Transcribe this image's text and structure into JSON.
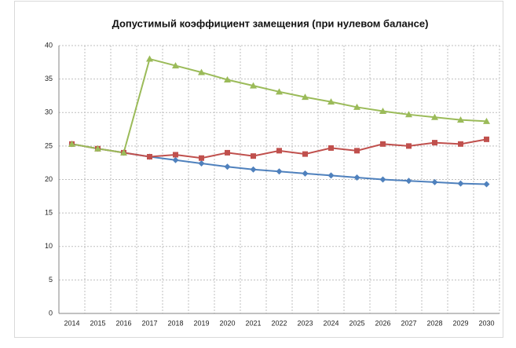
{
  "chart_data": {
    "type": "line",
    "title": "Допустимый коэффициент замещения (при нулевом балансе)",
    "categories": [
      "2014",
      "2015",
      "2016",
      "2017",
      "2018",
      "2019",
      "2020",
      "2021",
      "2022",
      "2023",
      "2024",
      "2025",
      "2026",
      "2027",
      "2028",
      "2029",
      "2030"
    ],
    "series": [
      {
        "color": "#4f81bd",
        "marker": "diamond",
        "values": [
          25.3,
          24.6,
          24.0,
          23.4,
          22.9,
          22.4,
          21.9,
          21.5,
          21.2,
          20.9,
          20.6,
          20.3,
          20.0,
          19.8,
          19.6,
          19.4,
          19.3
        ]
      },
      {
        "color": "#c0504d",
        "marker": "square",
        "values": [
          25.3,
          24.6,
          24.0,
          23.4,
          23.7,
          23.2,
          24.0,
          23.5,
          24.3,
          23.8,
          24.7,
          24.3,
          25.3,
          25.0,
          25.5,
          25.3,
          26.0
        ]
      },
      {
        "color": "#9bbb59",
        "marker": "triangle",
        "values": [
          25.3,
          24.6,
          24.0,
          38.0,
          37.0,
          36.0,
          34.9,
          34.0,
          33.1,
          32.3,
          31.6,
          30.8,
          30.2,
          29.7,
          29.3,
          28.9,
          28.7
        ]
      }
    ],
    "ylim": [
      0,
      40
    ],
    "yticks": [
      0,
      5,
      10,
      15,
      20,
      25,
      30,
      35,
      40
    ],
    "grid": true
  }
}
